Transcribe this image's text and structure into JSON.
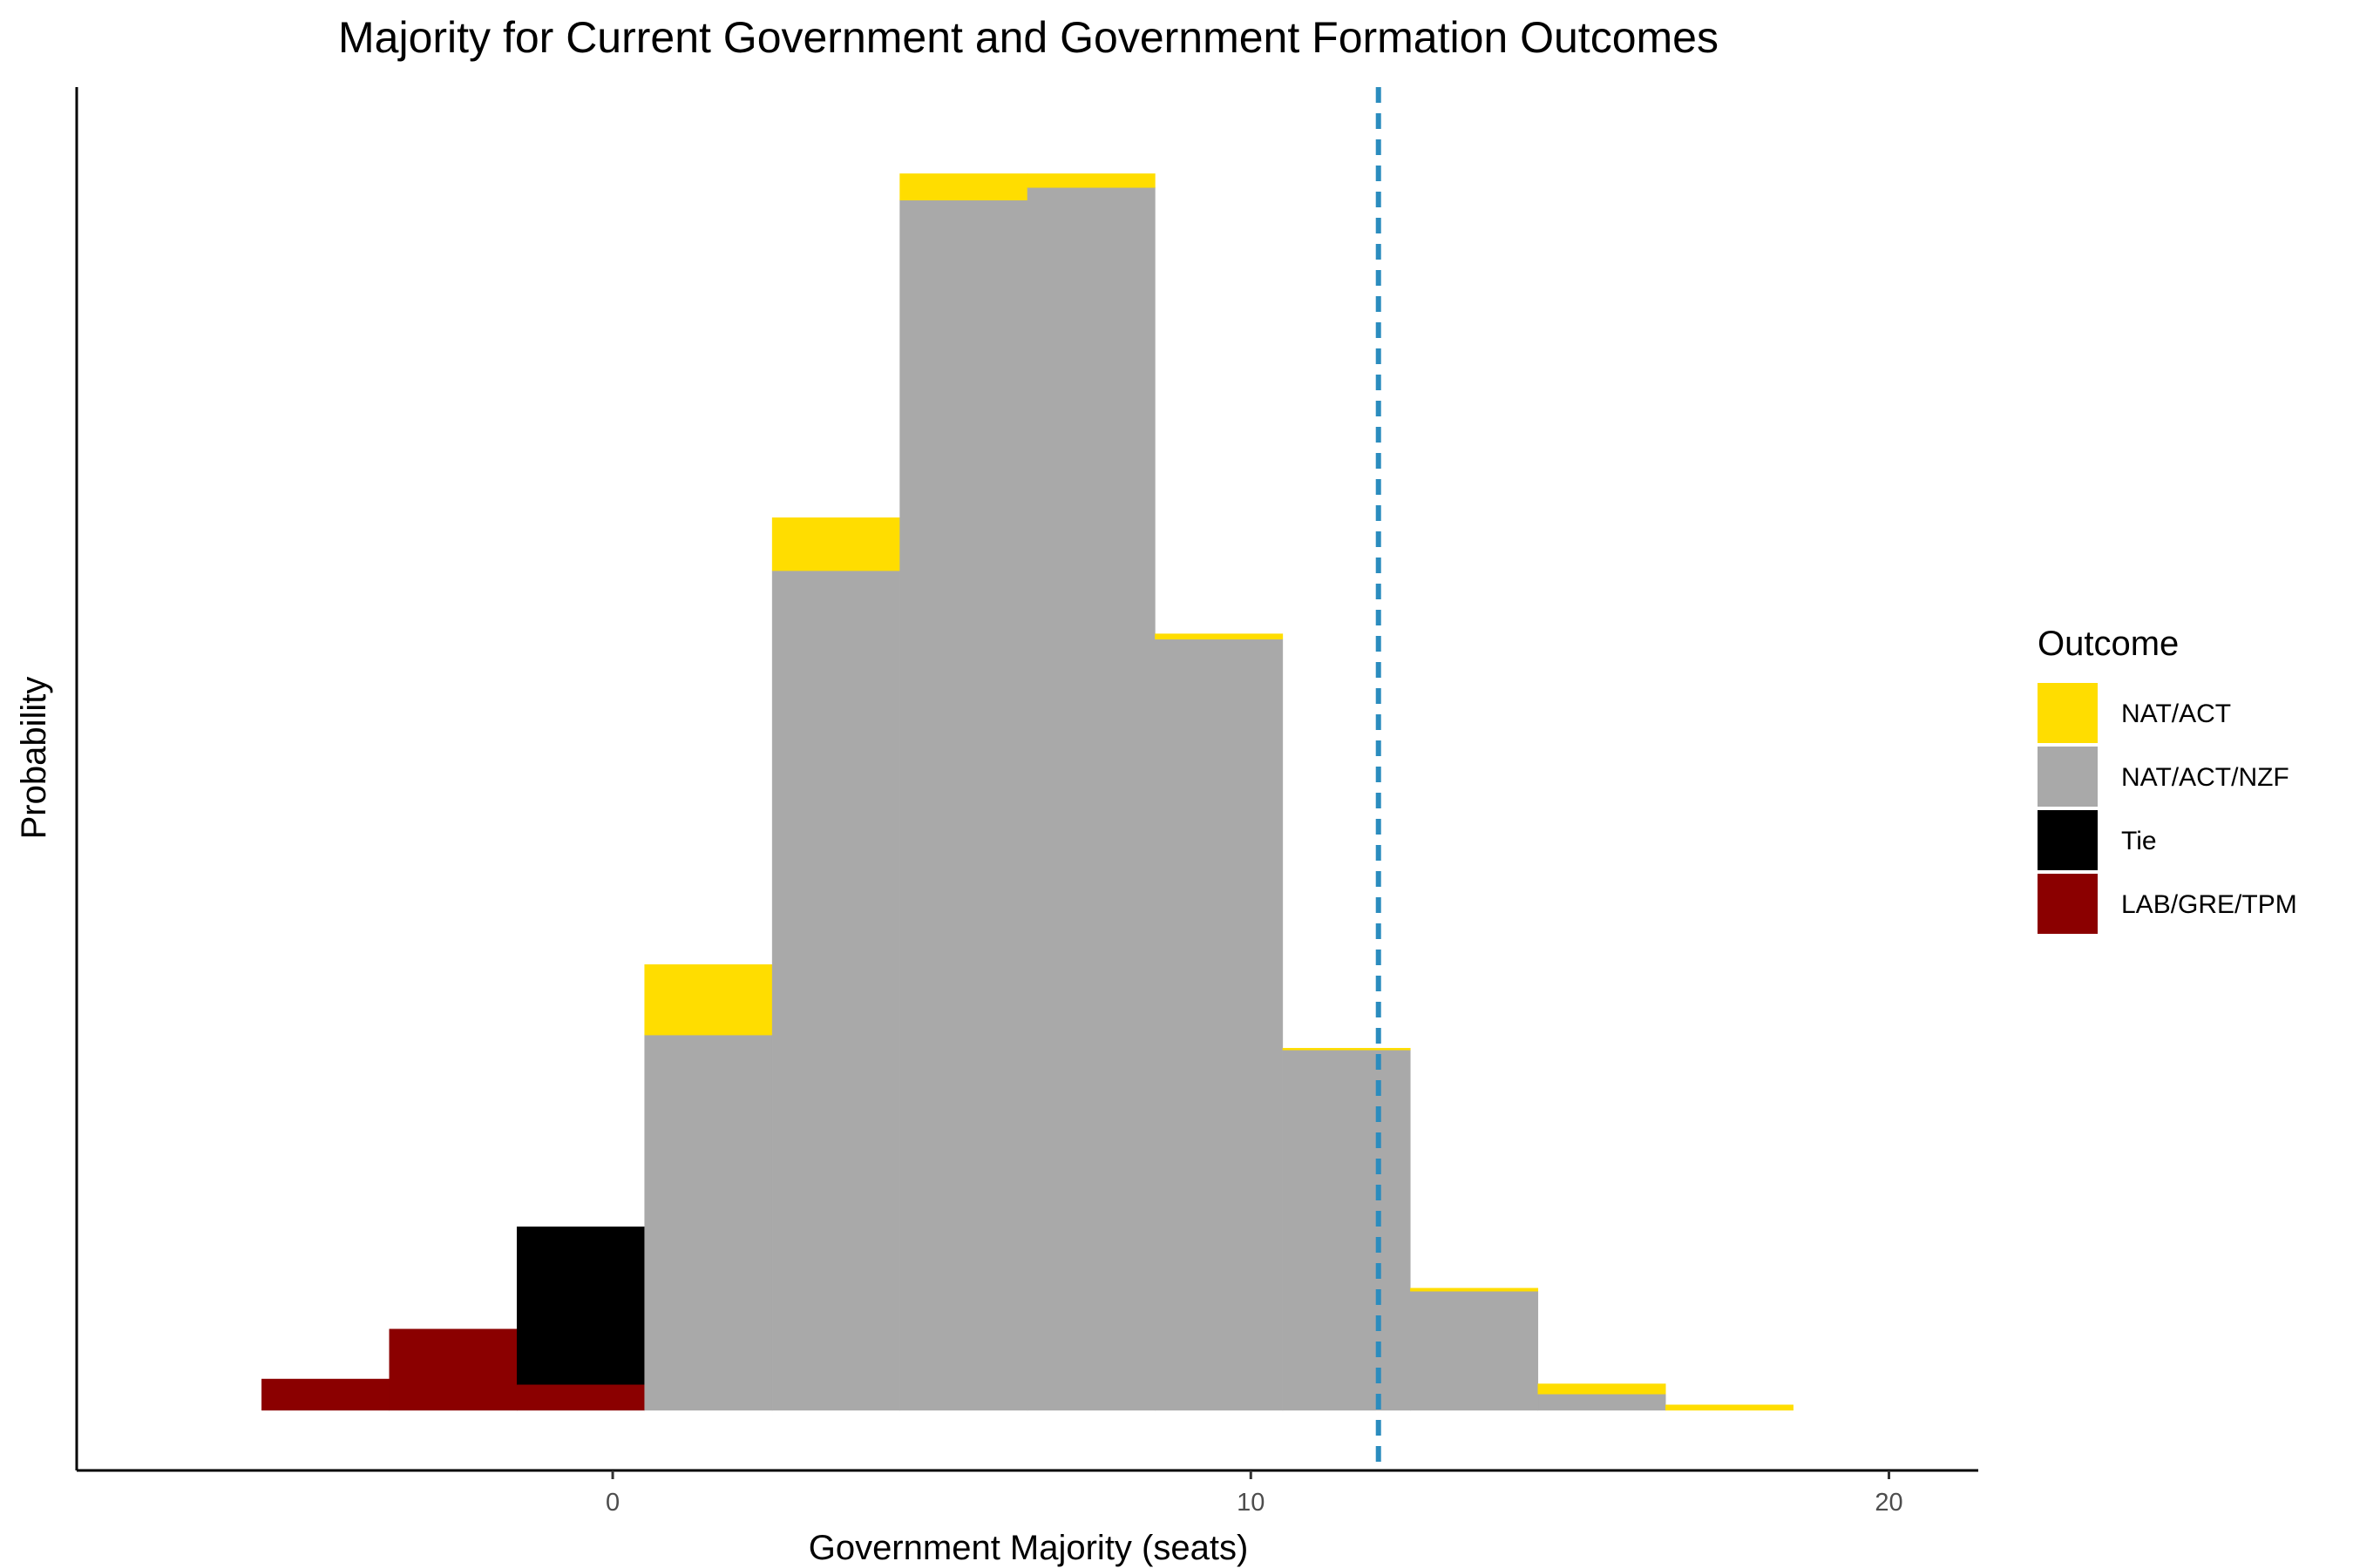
{
  "chart_data": {
    "type": "bar",
    "stacked": true,
    "title": "Majority for Current Government and Government Formation Outcomes",
    "xlabel": "Government Majority (seats)",
    "ylabel": "Probability",
    "xlim": [
      -8.4,
      21.4
    ],
    "ylim": [
      -0.01,
      0.22
    ],
    "x_ticks": [
      0,
      10,
      20
    ],
    "y_ticks_shown": false,
    "grid": false,
    "bin_width": 2,
    "bins": [
      -4.5,
      -2.5,
      -0.5,
      1.5,
      3.5,
      5.5,
      7.5,
      9.5,
      11.5,
      13.5,
      15.5,
      17.5
    ],
    "reference_line": {
      "x": 12,
      "style": "dashed",
      "color": "#2b8cbe"
    },
    "series": [
      {
        "name": "LAB/GRE/TPM",
        "color": "#8b0000",
        "values": [
          0.0052,
          0.0135,
          0.0043,
          0,
          0,
          0,
          0,
          0,
          0,
          0,
          0,
          0
        ]
      },
      {
        "name": "Tie",
        "color": "#000000",
        "values": [
          0,
          0,
          0.0262,
          0,
          0,
          0,
          0,
          0,
          0,
          0,
          0,
          0
        ]
      },
      {
        "name": "NAT/ACT/NZF",
        "color": "#a9a9a9",
        "values": [
          0,
          0,
          0,
          0.0624,
          0.1396,
          0.2012,
          0.2033,
          0.1282,
          0.0599,
          0.0198,
          0.0027,
          0
        ]
      },
      {
        "name": "NAT/ACT",
        "color": "#ffdd00",
        "values": [
          0,
          0,
          0,
          0.0117,
          0.0088,
          0.0044,
          0.0023,
          0.0009,
          0.0003,
          0.0005,
          0.0017,
          0.0009
        ]
      }
    ],
    "legend": {
      "title": "Outcome",
      "placement": "right",
      "order": [
        "NAT/ACT",
        "NAT/ACT/NZF",
        "Tie",
        "LAB/GRE/TPM"
      ]
    }
  }
}
